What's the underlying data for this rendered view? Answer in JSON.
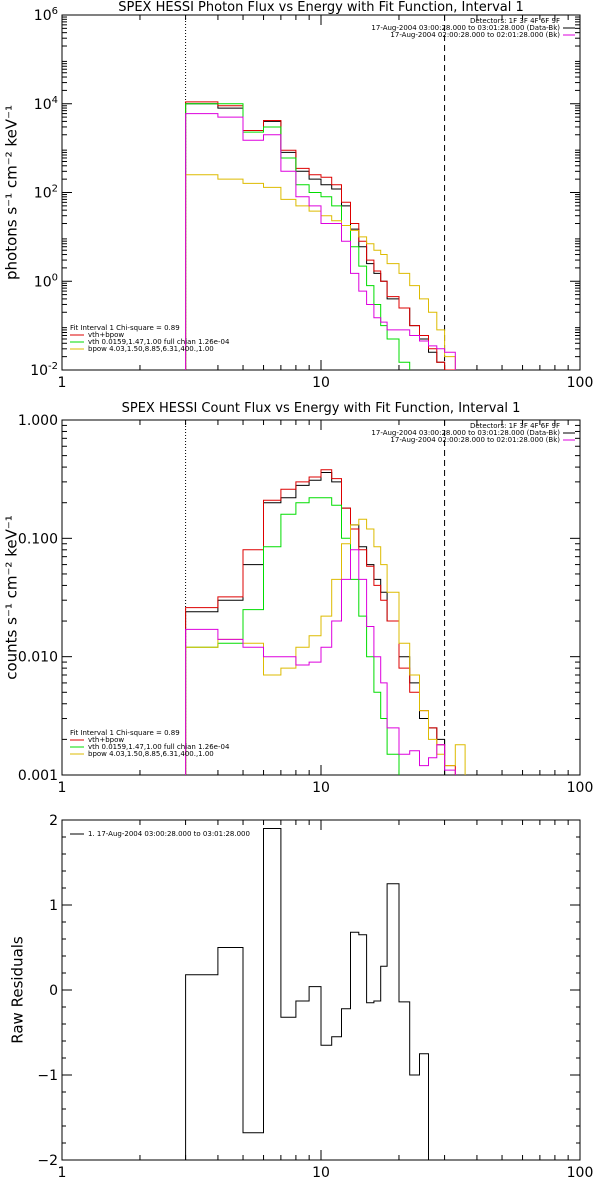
{
  "colors": {
    "data": "#000000",
    "total": "#dd0000",
    "vth": "#00dd00",
    "bpow": "#ddbb00",
    "background": "#dd00dd"
  },
  "chart_data": [
    {
      "type": "line",
      "title": "SPEX HESSI Photon Flux vs Energy with Fit Function, Interval 1",
      "ylabel": "photons s⁻¹ cm⁻² keV⁻¹",
      "xscale": "log",
      "yscale": "log",
      "xlim": [
        1,
        100
      ],
      "ylim": [
        0.01,
        1000000
      ],
      "xticks": [
        "1",
        "10",
        "100"
      ],
      "yticks": [
        {
          "v": 0.01,
          "b": "10",
          "e": "-2"
        },
        {
          "v": 1,
          "b": "10",
          "e": "0"
        },
        {
          "v": 100,
          "b": "10",
          "e": "2"
        },
        {
          "v": 10000,
          "b": "10",
          "e": "4"
        },
        {
          "v": 1000000,
          "b": "10",
          "e": "6"
        }
      ],
      "vlines": [
        {
          "x": 3,
          "style": "dotted"
        },
        {
          "x": 30,
          "style": "dashed"
        }
      ],
      "header_lines": [
        "Detectors: 1F 3F 4F 6F 9F",
        "17-Aug-2004 03:00:28.000 to 03:01:28.000 (Data-Bk)",
        "17-Aug-2004 02:00:28.000 to 02:01:28.000 (Bk)"
      ],
      "header_colors": [
        "none",
        "data",
        "background"
      ],
      "legend_lines": [
        "Fit Interval 1   Chi-square = 0.89",
        "vth+bpow",
        "vth 0.0159,1.47,1.00  full chian 1.26e-04",
        "bpow 4.03,1.50,8.85,6.31,400.,1.00"
      ],
      "legend_colors": [
        "none",
        "total",
        "vth",
        "bpow"
      ],
      "edges": [
        3,
        4,
        5,
        6,
        7,
        8,
        9,
        10,
        11,
        12,
        13,
        14,
        15,
        16,
        17,
        18,
        20,
        22,
        24,
        26,
        28,
        30,
        33
      ],
      "series": [
        {
          "name": "Data-Bk",
          "color_key": "data",
          "values": [
            10000,
            8000,
            2500,
            4000,
            800,
            300,
            200,
            150,
            120,
            50,
            15,
            6,
            2.5,
            1.5,
            1.0,
            0.4,
            0.25,
            0.1,
            0.05,
            0.025,
            0.015,
            0.008
          ]
        },
        {
          "name": "vth+bpow",
          "color_key": "total",
          "values": [
            11000,
            9000,
            2500,
            4200,
            900,
            350,
            250,
            220,
            150,
            60,
            20,
            8,
            3,
            1.7,
            1.0,
            0.45,
            0.25,
            0.1,
            0.06,
            0.03,
            0.015,
            0.008
          ]
        },
        {
          "name": "vth",
          "color_key": "vth",
          "values": [
            10000,
            10000,
            2300,
            3000,
            600,
            150,
            100,
            80,
            50,
            18,
            6,
            2.2,
            0.8,
            0.3,
            0.1,
            0.05,
            0.015
          ]
        },
        {
          "name": "bpow",
          "color_key": "bpow",
          "values": [
            250,
            200,
            160,
            130,
            70,
            50,
            38,
            30,
            23,
            18,
            14,
            10,
            7,
            5,
            4,
            2.5,
            1.5,
            0.8,
            0.4,
            0.2,
            0.08,
            0.02,
            0.012
          ]
        },
        {
          "name": "Bk",
          "color_key": "background",
          "values": [
            6000,
            5000,
            1500,
            2000,
            300,
            80,
            50,
            20,
            20,
            8,
            1.5,
            0.6,
            0.3,
            0.15,
            0.12,
            0.08,
            0.08,
            0.06,
            0.045,
            0.035,
            0.03,
            0.025
          ]
        }
      ]
    },
    {
      "type": "line",
      "title": "SPEX HESSI Count Flux vs Energy with Fit Function, Interval 1",
      "ylabel": "counts s⁻¹ cm⁻² keV⁻¹",
      "xscale": "log",
      "yscale": "log",
      "xlim": [
        1,
        100
      ],
      "ylim": [
        0.001,
        1
      ],
      "xticks": [
        "1",
        "10",
        "100"
      ],
      "yticks": [
        {
          "v": 0.001,
          "label": "0.001"
        },
        {
          "v": 0.01,
          "label": "0.010"
        },
        {
          "v": 0.1,
          "label": "0.100"
        },
        {
          "v": 1,
          "label": "1.000"
        }
      ],
      "vlines": [
        {
          "x": 3,
          "style": "dotted"
        },
        {
          "x": 30,
          "style": "dashed"
        }
      ],
      "header_lines": [
        "Detectors: 1F 3F 4F 6F 9F",
        "17-Aug-2004 03:00:28.000 to 03:01:28.000 (Data-Bk)",
        "17-Aug-2004 02:00:28.000 to 02:01:28.000 (Bk)"
      ],
      "header_colors": [
        "none",
        "data",
        "background"
      ],
      "legend_lines": [
        "Fit Interval 1   Chi-square = 0.89",
        "vth+bpow",
        "vth 0.0159,1.47,1.00  full chian 1.26e-04",
        "bpow 4.03,1.50,8.85,6.31,400.,1.00"
      ],
      "legend_colors": [
        "none",
        "total",
        "vth",
        "bpow"
      ],
      "edges": [
        3,
        4,
        5,
        6,
        7,
        8,
        9,
        10,
        11,
        12,
        13,
        14,
        15,
        16,
        17,
        18,
        20,
        22,
        24,
        26,
        28,
        30,
        33,
        36
      ],
      "series": [
        {
          "name": "Data-Bk",
          "color_key": "data",
          "values": [
            0.024,
            0.03,
            0.06,
            0.2,
            0.22,
            0.28,
            0.31,
            0.36,
            0.3,
            0.18,
            0.13,
            0.085,
            0.06,
            0.045,
            0.035,
            0.02,
            0.01,
            0.006,
            0.003,
            0.0025,
            0.002,
            0.001
          ]
        },
        {
          "name": "vth+bpow",
          "color_key": "total",
          "values": [
            0.026,
            0.032,
            0.08,
            0.21,
            0.26,
            0.3,
            0.33,
            0.38,
            0.32,
            0.18,
            0.12,
            0.08,
            0.058,
            0.04,
            0.03,
            0.02,
            0.008,
            0.005,
            0.0035,
            0.0025,
            0.0018,
            0.0012
          ]
        },
        {
          "name": "vth",
          "color_key": "vth",
          "values": [
            0.012,
            0.013,
            0.025,
            0.085,
            0.16,
            0.2,
            0.22,
            0.22,
            0.19,
            0.1,
            0.045,
            0.022,
            0.01,
            0.005,
            0.003,
            0.0015
          ]
        },
        {
          "name": "bpow",
          "color_key": "bpow",
          "values": [
            0.012,
            0.014,
            0.013,
            0.007,
            0.008,
            0.012,
            0.015,
            0.022,
            0.045,
            0.09,
            0.13,
            0.145,
            0.12,
            0.085,
            0.06,
            0.035,
            0.013,
            0.007,
            0.0035,
            0.002,
            0.0015,
            0.0012,
            0.0018
          ]
        },
        {
          "name": "Bk",
          "color_key": "background",
          "values": [
            0.017,
            0.014,
            0.012,
            0.01,
            0.01,
            0.0085,
            0.009,
            0.012,
            0.02,
            0.045,
            0.08,
            0.045,
            0.018,
            0.01,
            0.006,
            0.0025,
            0.0015,
            0.0016,
            0.0012,
            0.0014,
            0.0018,
            0.0011
          ]
        }
      ]
    },
    {
      "type": "line",
      "title": "",
      "ylabel": "Raw Residuals",
      "xscale": "log",
      "yscale": "linear",
      "xlim": [
        1,
        100
      ],
      "ylim": [
        -2,
        2
      ],
      "xticks": [
        "1",
        "10",
        "100"
      ],
      "yticks": [
        {
          "v": -2,
          "label": "−2"
        },
        {
          "v": -1,
          "label": "−1"
        },
        {
          "v": 0,
          "label": "0"
        },
        {
          "v": 1,
          "label": "1"
        },
        {
          "v": 2,
          "label": "2"
        }
      ],
      "legend_lines": [
        "1. 17-Aug-2004 03:00:28.000 to 03:01:28.000"
      ],
      "legend_colors": [
        "data"
      ],
      "edges": [
        3,
        4,
        5,
        6,
        7,
        8,
        9,
        10,
        11,
        12,
        13,
        14,
        15,
        16,
        17,
        18,
        20,
        22,
        24,
        26,
        28,
        30
      ],
      "series": [
        {
          "name": "residuals",
          "color_key": "data",
          "values": [
            0.18,
            0.5,
            -1.68,
            1.9,
            -0.32,
            -0.13,
            0.04,
            -0.65,
            -0.55,
            -0.22,
            0.68,
            0.65,
            -0.15,
            -0.13,
            0.28,
            1.25,
            -0.14,
            -1.0,
            -0.75
          ]
        }
      ]
    }
  ]
}
